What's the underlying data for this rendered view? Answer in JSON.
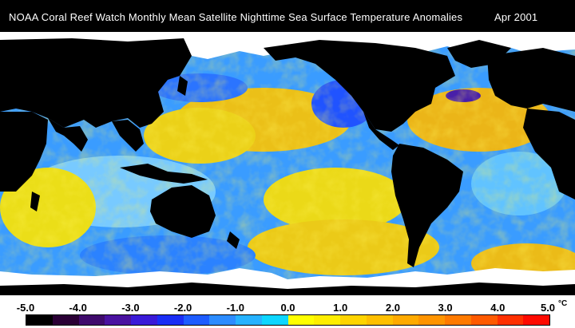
{
  "header": {
    "title": "NOAA Coral Reef Watch Monthly Mean Satellite Nighttime Sea Surface Temperature Anomalies",
    "date": "Apr 2001"
  },
  "legend": {
    "tick_labels": [
      "-5.0",
      "-4.0",
      "-3.0",
      "-2.0",
      "-1.0",
      "0.0",
      "1.0",
      "2.0",
      "3.0",
      "4.0",
      "5.0"
    ],
    "unit": "°C",
    "colors": [
      "#000000",
      "#2a0035",
      "#3f0a6c",
      "#4a12a0",
      "#3a1ad8",
      "#1a2ef5",
      "#1e5cff",
      "#2c8cff",
      "#26b2ff",
      "#0dd6ff",
      "#ffff00",
      "#ffee00",
      "#ffd400",
      "#ffbf00",
      "#ffaa00",
      "#ff9400",
      "#ff7a00",
      "#ff5a00",
      "#ff3000",
      "#ff0a00"
    ]
  },
  "map": {
    "land_color": "#000000",
    "ice_color": "#ffffff",
    "ocean_base_color": "#3aaaff"
  }
}
